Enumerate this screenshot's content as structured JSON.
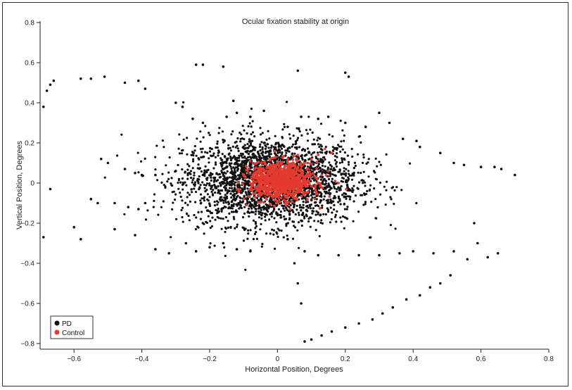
{
  "chart_data": {
    "type": "scatter",
    "title": "Ocular fixation stability at origin",
    "xlabel": "Horizontal Position, Degrees",
    "ylabel": "Vertical Position, Degrees",
    "xlim": [
      -0.7,
      0.8
    ],
    "ylim": [
      -0.82,
      0.8
    ],
    "xticks": [
      "−0.6",
      "−0.4",
      "−0.2",
      "0",
      "0.2",
      "0.4",
      "0.6",
      "0.8"
    ],
    "yticks": [
      "0.8",
      "0.6",
      "0.4",
      "0.2",
      "0",
      "−0.2",
      "−0.4",
      "−0.6",
      "−0.8"
    ],
    "legend_position": "bottom-left",
    "grid": false,
    "series": [
      {
        "name": "PD",
        "color": "#111111",
        "x": [
          -0.69,
          -0.68,
          -0.67,
          -0.66,
          -0.58,
          -0.55,
          -0.51,
          -0.45,
          -0.41,
          -0.39,
          -0.24,
          -0.22,
          -0.16,
          -0.13,
          -0.04,
          0.06,
          0.2,
          0.21,
          -0.3,
          -0.28,
          -0.25,
          -0.22,
          -0.15,
          -0.12,
          -0.08,
          0.03,
          0.07,
          0.12,
          0.15,
          0.2,
          0.26,
          0.3,
          0.33,
          0.37,
          0.41,
          0.42,
          0.48,
          0.52,
          0.55,
          0.6,
          0.64,
          0.66,
          0.7,
          -0.52,
          -0.5,
          -0.45,
          -0.42,
          -0.4,
          -0.36,
          -0.3,
          -0.26,
          -0.22,
          -0.55,
          -0.53,
          -0.48,
          -0.44,
          -0.41,
          -0.39,
          -0.67,
          -0.69,
          -0.6,
          -0.58,
          -0.48,
          -0.42,
          -0.36,
          -0.32,
          -0.27,
          -0.24,
          -0.2,
          -0.16,
          -0.12,
          -0.08,
          0.08,
          0.12,
          0.18,
          0.24,
          0.3,
          0.36,
          0.4,
          0.46,
          0.52,
          0.58,
          0.65,
          0.59,
          0.62,
          0.56,
          0.51,
          0.48,
          0.45,
          0.42,
          0.38,
          0.34,
          0.31,
          0.28,
          0.24,
          0.2,
          0.16,
          0.13,
          0.1,
          0.08,
          0.07,
          0.06,
          0.05,
          0.03
        ],
        "y": [
          0.38,
          0.46,
          0.49,
          0.51,
          0.52,
          0.52,
          0.53,
          0.5,
          0.51,
          0.47,
          0.59,
          0.59,
          0.58,
          0.41,
          0.36,
          0.56,
          0.55,
          0.53,
          0.4,
          0.38,
          0.32,
          0.3,
          0.33,
          0.35,
          0.33,
          0.28,
          0.33,
          0.32,
          0.33,
          0.3,
          0.28,
          0.35,
          0.3,
          0.22,
          0.21,
          0.18,
          0.15,
          0.1,
          0.09,
          0.08,
          0.08,
          0.07,
          0.04,
          0.12,
          0.1,
          0.07,
          0.05,
          0.04,
          0.04,
          0.06,
          0.05,
          0.04,
          -0.08,
          -0.1,
          -0.1,
          -0.12,
          -0.13,
          -0.1,
          -0.03,
          -0.27,
          -0.22,
          -0.28,
          -0.23,
          -0.26,
          -0.33,
          -0.35,
          -0.3,
          -0.34,
          -0.32,
          -0.3,
          -0.33,
          -0.34,
          -0.34,
          -0.36,
          -0.36,
          -0.36,
          -0.36,
          -0.35,
          -0.34,
          -0.35,
          -0.34,
          -0.2,
          -0.35,
          -0.3,
          -0.37,
          -0.38,
          -0.46,
          -0.5,
          -0.52,
          -0.56,
          -0.58,
          -0.62,
          -0.65,
          -0.68,
          -0.7,
          -0.72,
          -0.74,
          -0.76,
          -0.78,
          -0.79,
          -0.6,
          -0.5,
          -0.4,
          -0.28
        ]
      },
      {
        "name": "Control",
        "color": "#e53a2f",
        "x": [
          -0.05,
          -0.04,
          -0.03,
          -0.02,
          -0.01,
          0.0,
          0.01,
          0.02,
          0.03,
          0.04,
          0.05,
          0.06,
          0.07,
          0.08,
          0.1,
          0.12,
          0.14,
          0.16,
          0.18,
          0.15,
          0.11,
          -0.02,
          0.0,
          0.03,
          0.06,
          0.09,
          0.13,
          0.17,
          0.03,
          -0.03,
          0.01
        ],
        "y": [
          0.0,
          0.03,
          -0.03,
          0.05,
          -0.05,
          0.02,
          -0.02,
          0.06,
          -0.06,
          0.04,
          0.01,
          0.08,
          -0.04,
          0.1,
          0.12,
          0.14,
          0.17,
          0.15,
          0.0,
          0.06,
          -0.08,
          0.09,
          -0.09,
          0.12,
          0.14,
          0.1,
          0.04,
          0.01,
          -0.07,
          -0.06,
          0.0
        ]
      }
    ],
    "density_clouds": [
      {
        "series": "PD",
        "cx": -0.02,
        "cy": 0.01,
        "sx": 0.13,
        "sy": 0.11,
        "n": 2600
      },
      {
        "series": "Control",
        "cx": 0.01,
        "cy": 0.01,
        "sx": 0.045,
        "sy": 0.045,
        "n": 900
      }
    ]
  }
}
